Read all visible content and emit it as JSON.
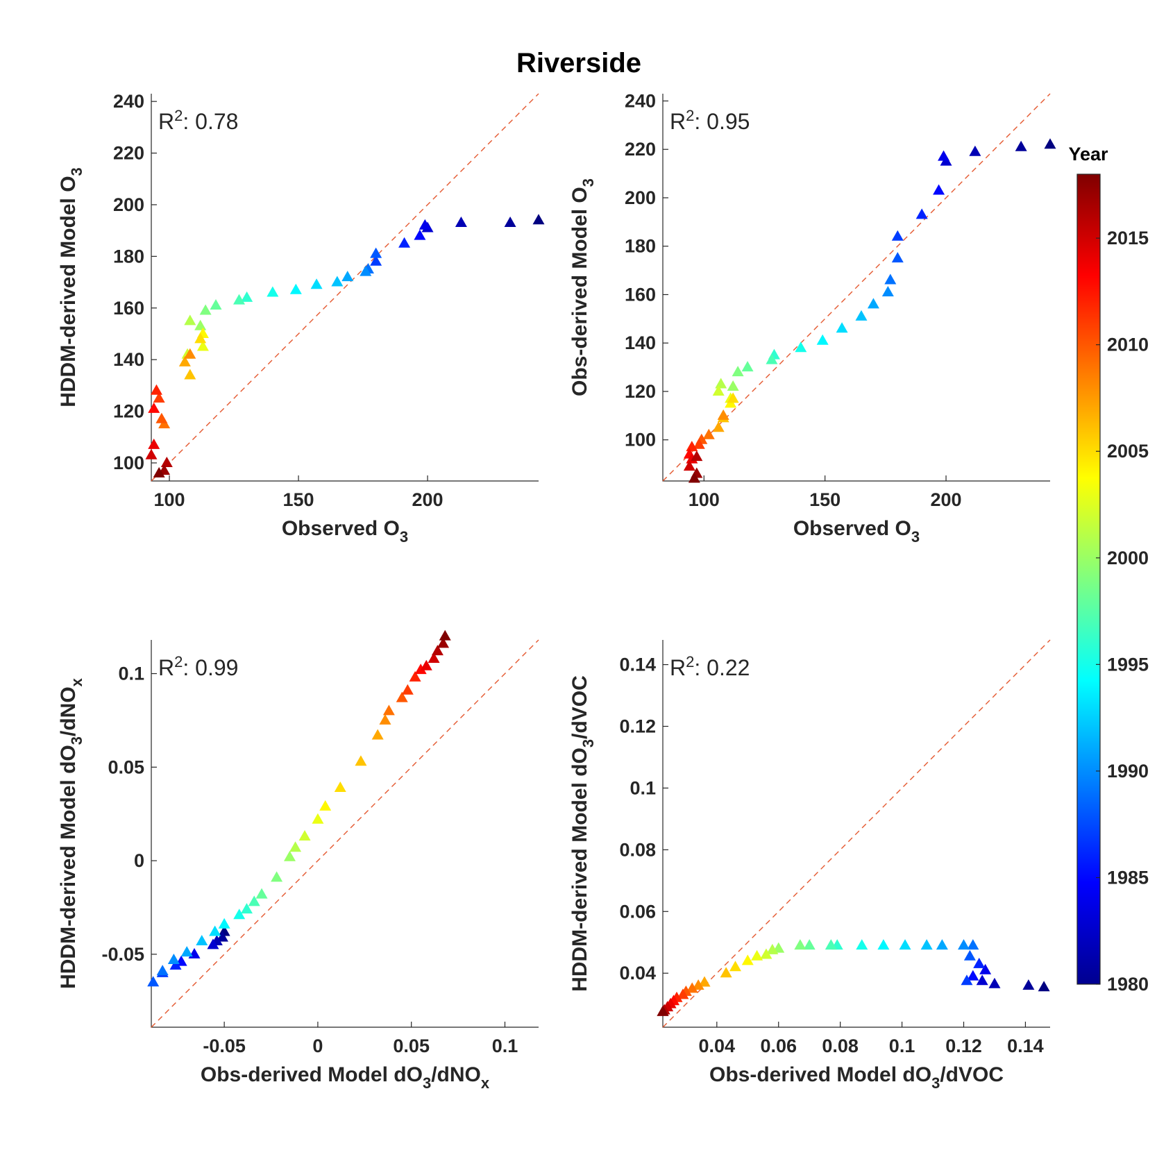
{
  "title": "Riverside",
  "colorbar": {
    "title": "Year",
    "range": [
      1980,
      2018
    ],
    "ticks": [
      1980,
      1985,
      1990,
      1995,
      2000,
      2005,
      2010,
      2015
    ],
    "tick_labels": [
      "1980",
      "1985",
      "1990",
      "1995",
      "2000",
      "2005",
      "2010",
      "2015"
    ],
    "colormap": "jet"
  },
  "chart_data": [
    {
      "type": "scatter",
      "id": "p1",
      "marker": "triangle",
      "r2_prefix": "R",
      "r2_sup": "2",
      "r2_value": ": 0.78",
      "xlabel_main": "Observed O",
      "xlabel_sub": "3",
      "xlabel_tail": "",
      "ylabel_main": "HDDM-derived Model O",
      "ylabel_sub": "3",
      "ylabel_tail": "",
      "xlim": [
        93,
        243
      ],
      "ylim": [
        93,
        243
      ],
      "xticks": [
        100,
        150,
        200
      ],
      "xtick_labels": [
        "100",
        "150",
        "200"
      ],
      "yticks": [
        100,
        120,
        140,
        160,
        180,
        200,
        220,
        240
      ],
      "ytick_labels": [
        "100",
        "120",
        "140",
        "160",
        "180",
        "200",
        "220",
        "240"
      ],
      "reference_line": "y = x",
      "years": [
        1980,
        1981,
        1982,
        1983,
        1984,
        1985,
        1986,
        1987,
        1988,
        1989,
        1990,
        1991,
        1992,
        1993,
        1994,
        1995,
        1996,
        1997,
        1998,
        1999,
        2000,
        2001,
        2002,
        2003,
        2004,
        2005,
        2006,
        2007,
        2008,
        2009,
        2010,
        2011,
        2012,
        2013,
        2014,
        2015,
        2016,
        2017,
        2018
      ],
      "x": [
        243,
        232,
        213,
        200,
        199,
        197,
        191,
        180,
        180,
        177,
        176,
        169,
        165,
        157,
        149,
        140,
        130,
        127,
        118,
        114,
        112,
        108,
        107,
        113,
        113,
        112,
        108,
        106,
        108,
        98,
        97,
        96,
        95,
        94,
        94,
        93,
        99,
        98,
        96
      ],
      "y": [
        194,
        193,
        193,
        191,
        192,
        188,
        185,
        178,
        181,
        175,
        174,
        172,
        170,
        169,
        167,
        166,
        164,
        163,
        161,
        159,
        153,
        155,
        142,
        145,
        150,
        148,
        134,
        139,
        142,
        115,
        117,
        125,
        128,
        121,
        107,
        103,
        100,
        97,
        96
      ]
    },
    {
      "type": "scatter",
      "id": "p2",
      "marker": "triangle",
      "r2_prefix": "R",
      "r2_sup": "2",
      "r2_value": ": 0.95",
      "xlabel_main": "Observed O",
      "xlabel_sub": "3",
      "xlabel_tail": "",
      "ylabel_main": "Obs-derived Model O",
      "ylabel_sub": "3",
      "ylabel_tail": "",
      "xlim": [
        83,
        243
      ],
      "ylim": [
        83,
        243
      ],
      "xticks": [
        100,
        150,
        200
      ],
      "xtick_labels": [
        "100",
        "150",
        "200"
      ],
      "yticks": [
        100,
        120,
        140,
        160,
        180,
        200,
        220,
        240
      ],
      "ytick_labels": [
        "100",
        "120",
        "140",
        "160",
        "180",
        "200",
        "220",
        "240"
      ],
      "reference_line": "y = x",
      "years": [
        1980,
        1981,
        1982,
        1983,
        1984,
        1985,
        1986,
        1987,
        1988,
        1989,
        1990,
        1991,
        1992,
        1993,
        1994,
        1995,
        1996,
        1997,
        1998,
        1999,
        2000,
        2001,
        2002,
        2003,
        2004,
        2005,
        2006,
        2007,
        2008,
        2009,
        2010,
        2011,
        2012,
        2013,
        2014,
        2015,
        2016,
        2017,
        2018
      ],
      "x": [
        243,
        231,
        212,
        200,
        199,
        197,
        190,
        180,
        180,
        177,
        176,
        170,
        165,
        157,
        149,
        140,
        129,
        128,
        118,
        114,
        112,
        107,
        106,
        111,
        111,
        112,
        108,
        106,
        108,
        102,
        99,
        98,
        95,
        94,
        95,
        94,
        97,
        97,
        96
      ],
      "y": [
        222,
        221,
        219,
        215,
        217,
        203,
        193,
        184,
        175,
        166,
        161,
        156,
        151,
        146,
        141,
        138,
        135,
        133,
        130,
        128,
        122,
        123,
        120,
        117,
        115,
        117,
        109,
        105,
        110,
        102,
        100,
        98,
        97,
        94,
        92,
        89,
        93,
        86,
        84
      ]
    },
    {
      "type": "scatter",
      "id": "p3",
      "marker": "triangle",
      "r2_prefix": "R",
      "r2_sup": "2",
      "r2_value": ": 0.99",
      "xlabel_main": "Obs-derived Model dO",
      "xlabel_sub": "3",
      "xlabel_tail": "/dNO",
      "xlabel_sub2": "x",
      "ylabel_main": "HDDM-derived Model dO",
      "ylabel_sub": "3",
      "ylabel_tail": "/dNO",
      "ylabel_sub2": "x",
      "xlim": [
        -0.089,
        0.118
      ],
      "ylim": [
        -0.089,
        0.118
      ],
      "xticks": [
        -0.05,
        0,
        0.05,
        0.1
      ],
      "xtick_labels": [
        "-0.05",
        "0",
        "0.05",
        "0.1"
      ],
      "yticks": [
        -0.05,
        0,
        0.05,
        0.1
      ],
      "ytick_labels": [
        "-0.05",
        "0",
        "0.05",
        "0.1"
      ],
      "reference_line": "y = x",
      "years": [
        1980,
        1981,
        1982,
        1983,
        1984,
        1985,
        1986,
        1987,
        1988,
        1989,
        1990,
        1991,
        1992,
        1993,
        1994,
        1995,
        1996,
        1997,
        1998,
        1999,
        2000,
        2001,
        2002,
        2003,
        2004,
        2005,
        2006,
        2007,
        2008,
        2009,
        2010,
        2011,
        2012,
        2013,
        2014,
        2015,
        2016,
        2017,
        2018
      ],
      "x": [
        -0.05,
        -0.051,
        -0.054,
        -0.056,
        -0.066,
        -0.073,
        -0.076,
        -0.083,
        -0.088,
        -0.083,
        -0.077,
        -0.07,
        -0.062,
        -0.055,
        -0.05,
        -0.042,
        -0.038,
        -0.034,
        -0.03,
        -0.022,
        -0.015,
        -0.012,
        -0.007,
        0.0,
        0.004,
        0.012,
        0.023,
        0.032,
        0.036,
        0.038,
        0.045,
        0.048,
        0.052,
        0.055,
        0.058,
        0.062,
        0.064,
        0.067,
        0.068
      ],
      "y": [
        -0.038,
        -0.041,
        -0.043,
        -0.045,
        -0.05,
        -0.054,
        -0.056,
        -0.06,
        -0.065,
        -0.059,
        -0.053,
        -0.049,
        -0.043,
        -0.038,
        -0.034,
        -0.029,
        -0.026,
        -0.022,
        -0.018,
        -0.009,
        0.002,
        0.007,
        0.013,
        0.022,
        0.029,
        0.039,
        0.053,
        0.067,
        0.075,
        0.08,
        0.087,
        0.091,
        0.098,
        0.102,
        0.104,
        0.108,
        0.112,
        0.116,
        0.12
      ]
    },
    {
      "type": "scatter",
      "id": "p4",
      "marker": "triangle",
      "r2_prefix": "R",
      "r2_sup": "2",
      "r2_value": ": 0.22",
      "xlabel_main": "Obs-derived Model dO",
      "xlabel_sub": "3",
      "xlabel_tail": "/dVOC",
      "ylabel_main": "HDDM-derived Model dO",
      "ylabel_sub": "3",
      "ylabel_tail": "/dVOC",
      "xlim": [
        0.0225,
        0.148
      ],
      "ylim": [
        0.0225,
        0.148
      ],
      "xticks": [
        0.04,
        0.06,
        0.08,
        0.1,
        0.12,
        0.14
      ],
      "xtick_labels": [
        "0.04",
        "0.06",
        "0.08",
        "0.1",
        "0.12",
        "0.14"
      ],
      "yticks": [
        0.04,
        0.06,
        0.08,
        0.1,
        0.12,
        0.14
      ],
      "ytick_labels": [
        "0.04",
        "0.06",
        "0.08",
        "0.1",
        "0.12",
        "0.14"
      ],
      "reference_line": "y = x",
      "years": [
        1980,
        1981,
        1982,
        1983,
        1984,
        1985,
        1986,
        1987,
        1988,
        1989,
        1990,
        1991,
        1992,
        1993,
        1994,
        1995,
        1996,
        1997,
        1998,
        1999,
        2000,
        2001,
        2002,
        2003,
        2004,
        2005,
        2006,
        2007,
        2008,
        2009,
        2010,
        2011,
        2012,
        2013,
        2014,
        2015,
        2016,
        2017,
        2018
      ],
      "x": [
        0.146,
        0.141,
        0.13,
        0.126,
        0.127,
        0.123,
        0.125,
        0.121,
        0.122,
        0.123,
        0.12,
        0.113,
        0.108,
        0.101,
        0.094,
        0.087,
        0.079,
        0.077,
        0.07,
        0.067,
        0.06,
        0.058,
        0.056,
        0.053,
        0.05,
        0.046,
        0.043,
        0.036,
        0.034,
        0.032,
        0.03,
        0.029,
        0.027,
        0.026,
        0.025,
        0.024,
        0.023,
        0.0225,
        0.0225
      ],
      "y": [
        0.0355,
        0.036,
        0.0365,
        0.0375,
        0.041,
        0.039,
        0.043,
        0.0375,
        0.0455,
        0.049,
        0.049,
        0.049,
        0.049,
        0.049,
        0.049,
        0.049,
        0.049,
        0.049,
        0.049,
        0.049,
        0.048,
        0.0475,
        0.046,
        0.0455,
        0.044,
        0.042,
        0.04,
        0.037,
        0.036,
        0.035,
        0.034,
        0.033,
        0.032,
        0.031,
        0.03,
        0.029,
        0.028,
        0.0275,
        0.0275
      ]
    }
  ]
}
